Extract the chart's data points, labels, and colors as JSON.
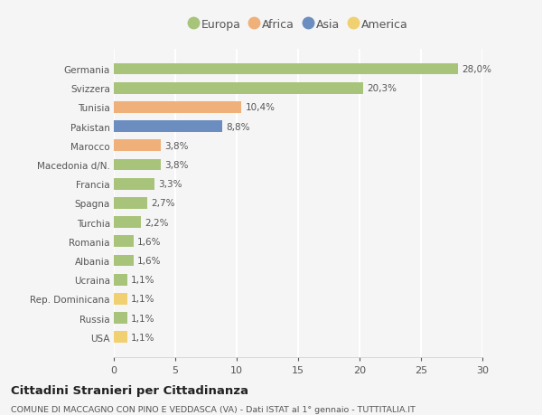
{
  "categories": [
    "Germania",
    "Svizzera",
    "Tunisia",
    "Pakistan",
    "Marocco",
    "Macedonia d/N.",
    "Francia",
    "Spagna",
    "Turchia",
    "Romania",
    "Albania",
    "Ucraina",
    "Rep. Dominicana",
    "Russia",
    "USA"
  ],
  "values": [
    28.0,
    20.3,
    10.4,
    8.8,
    3.8,
    3.8,
    3.3,
    2.7,
    2.2,
    1.6,
    1.6,
    1.1,
    1.1,
    1.1,
    1.1
  ],
  "labels": [
    "28,0%",
    "20,3%",
    "10,4%",
    "8,8%",
    "3,8%",
    "3,8%",
    "3,3%",
    "2,7%",
    "2,2%",
    "1,6%",
    "1,6%",
    "1,1%",
    "1,1%",
    "1,1%",
    "1,1%"
  ],
  "colors": [
    "#a8c47a",
    "#a8c47a",
    "#f0b07a",
    "#6b8dbf",
    "#f0b07a",
    "#a8c47a",
    "#a8c47a",
    "#a8c47a",
    "#a8c47a",
    "#a8c47a",
    "#a8c47a",
    "#a8c47a",
    "#f0d070",
    "#a8c47a",
    "#f0d070"
  ],
  "legend_labels": [
    "Europa",
    "Africa",
    "Asia",
    "America"
  ],
  "legend_colors": [
    "#a8c47a",
    "#f0b07a",
    "#6b8dbf",
    "#f0d070"
  ],
  "xlim": [
    0,
    30
  ],
  "xticks": [
    0,
    5,
    10,
    15,
    20,
    25,
    30
  ],
  "title": "Cittadini Stranieri per Cittadinanza",
  "subtitle": "COMUNE DI MACCAGNO CON PINO E VEDDASCA (VA) - Dati ISTAT al 1° gennaio - TUTTITALIA.IT",
  "background_color": "#f5f5f5",
  "grid_color": "#ffffff",
  "bar_height": 0.6
}
